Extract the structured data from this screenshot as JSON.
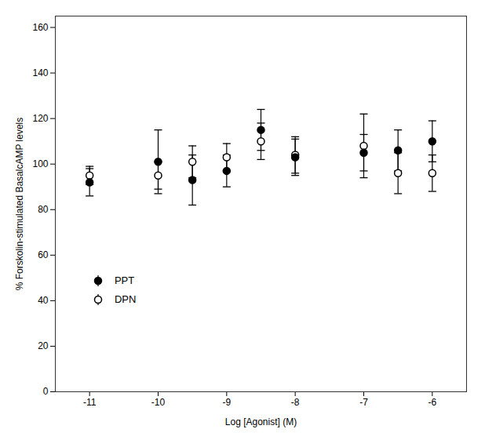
{
  "chart_data": {
    "type": "scatter",
    "x": [
      -11,
      -10,
      -9.5,
      -9,
      -8.5,
      -8,
      -7,
      -6.5,
      -6
    ],
    "series": [
      {
        "name": "PPT",
        "color": "#000000",
        "marker": "filled_circle",
        "values": [
          92,
          101,
          93,
          97,
          115,
          103,
          105,
          106,
          110
        ],
        "yerr": [
          6,
          14,
          11,
          7,
          9,
          8,
          8,
          9,
          9
        ]
      },
      {
        "name": "DPN",
        "color": "#000000",
        "marker": "open_circle",
        "values": [
          95,
          95,
          101,
          103,
          110,
          104,
          108,
          96,
          96
        ],
        "yerr": [
          4,
          6,
          7,
          6,
          8,
          8,
          14,
          9,
          8
        ]
      }
    ],
    "xlim": [
      -11.5,
      -5.5
    ],
    "xticks": [
      -11,
      -10,
      -9,
      -8,
      -7,
      -6
    ],
    "ylim": [
      0,
      165
    ],
    "yticks": [
      0,
      20,
      40,
      60,
      80,
      100,
      120,
      140,
      160
    ],
    "xlabel": "Log [Agonist] (M)",
    "ylabel": "% Forskolin-stimulated BasalcAMP levels",
    "legend": "lower left",
    "grid": false
  }
}
